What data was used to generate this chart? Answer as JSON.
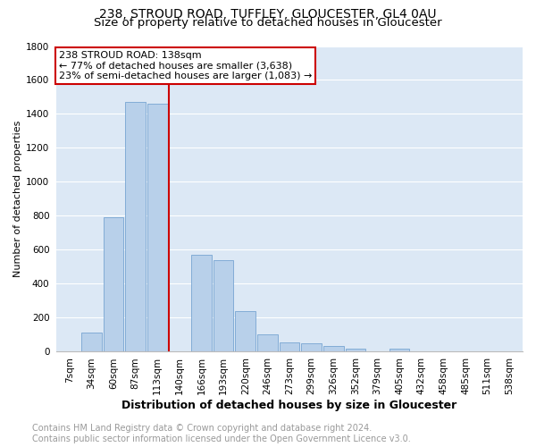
{
  "title": "238, STROUD ROAD, TUFFLEY, GLOUCESTER, GL4 0AU",
  "subtitle": "Size of property relative to detached houses in Gloucester",
  "xlabel": "Distribution of detached houses by size in Gloucester",
  "ylabel": "Number of detached properties",
  "bar_color": "#b8d0ea",
  "bar_edge_color": "#6699cc",
  "background_color": "#dce8f5",
  "grid_color": "#ffffff",
  "categories": [
    "7sqm",
    "34sqm",
    "60sqm",
    "87sqm",
    "113sqm",
    "140sqm",
    "166sqm",
    "193sqm",
    "220sqm",
    "246sqm",
    "273sqm",
    "299sqm",
    "326sqm",
    "352sqm",
    "379sqm",
    "405sqm",
    "432sqm",
    "458sqm",
    "485sqm",
    "511sqm",
    "538sqm"
  ],
  "values": [
    0,
    110,
    790,
    1470,
    1460,
    0,
    570,
    540,
    240,
    100,
    55,
    50,
    30,
    18,
    0,
    14,
    0,
    0,
    0,
    0,
    0
  ],
  "ylim": [
    0,
    1800
  ],
  "yticks": [
    0,
    200,
    400,
    600,
    800,
    1000,
    1200,
    1400,
    1600,
    1800
  ],
  "marker_label": "238 STROUD ROAD: 138sqm",
  "annotation_line1": "← 77% of detached houses are smaller (3,638)",
  "annotation_line2": "23% of semi-detached houses are larger (1,083) →",
  "annotation_box_color": "#ffffff",
  "annotation_box_edge": "#cc0000",
  "footer_line1": "Contains HM Land Registry data © Crown copyright and database right 2024.",
  "footer_line2": "Contains public sector information licensed under the Open Government Licence v3.0.",
  "title_fontsize": 10,
  "subtitle_fontsize": 9.5,
  "xlabel_fontsize": 9,
  "ylabel_fontsize": 8,
  "footer_fontsize": 7,
  "tick_fontsize": 7.5,
  "annot_fontsize": 8
}
